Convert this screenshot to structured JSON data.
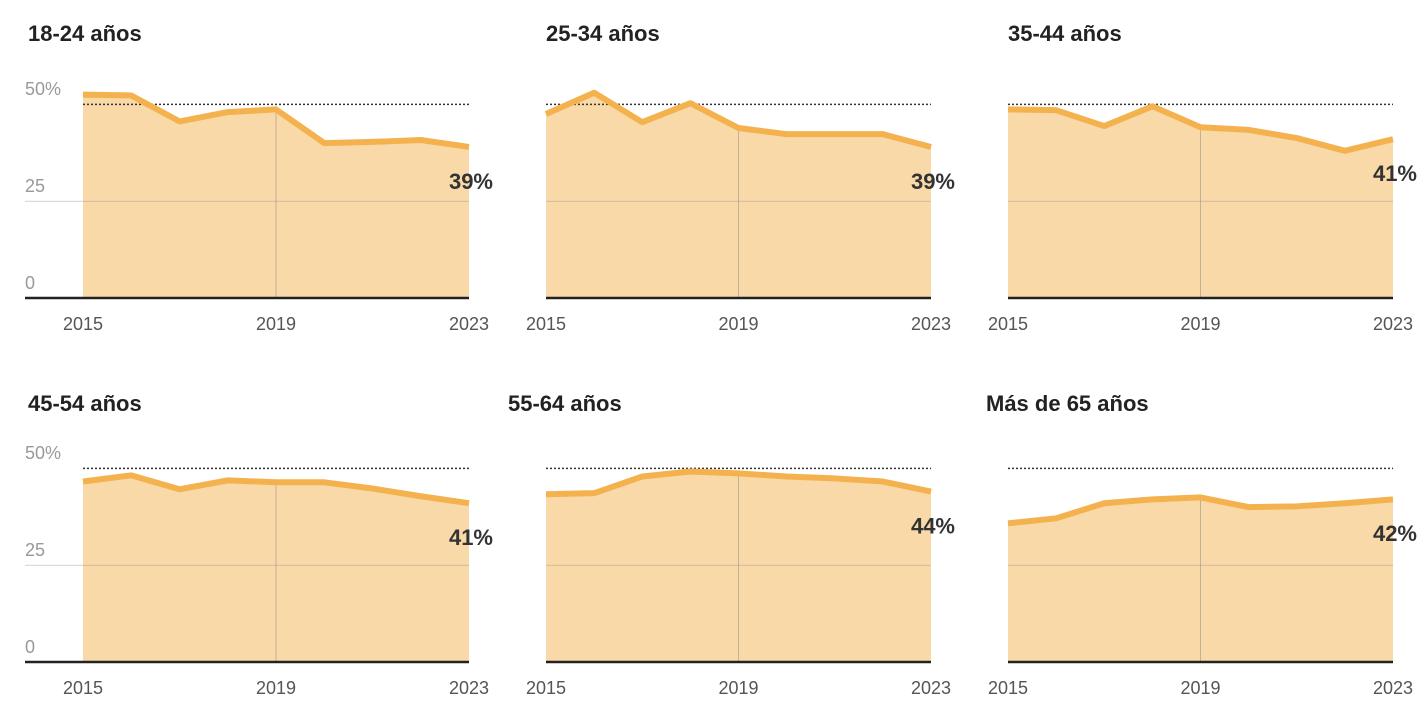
{
  "chart_data": [
    {
      "type": "area",
      "title": "18-24 años",
      "x": [
        2015,
        2016,
        2017,
        2018,
        2019,
        2020,
        2021,
        2022,
        2023
      ],
      "values": [
        52.5,
        52.3,
        45.6,
        48,
        48.7,
        40,
        40.3,
        40.8,
        39
      ],
      "value_labels": [
        null,
        null,
        null,
        null,
        null,
        null,
        null,
        null,
        "39%"
      ],
      "xlim": [
        2015,
        2023
      ],
      "xticks": [
        2015,
        2019,
        2023
      ],
      "ylim": [
        0,
        55
      ],
      "yticks": [
        0,
        25,
        {
          "value": 50,
          "label": "50%"
        }
      ],
      "color": "#f4b24f",
      "fill": "#f9d9a8",
      "grid": true
    },
    {
      "type": "area",
      "title": "25-34 años",
      "x": [
        2015,
        2016,
        2017,
        2018,
        2019,
        2020,
        2021,
        2022,
        2023
      ],
      "values": [
        47.5,
        53,
        45.4,
        50.3,
        43.9,
        42.3,
        42.3,
        42.3,
        39
      ],
      "value_labels": [
        null,
        null,
        null,
        null,
        null,
        null,
        null,
        null,
        "39%"
      ],
      "xlim": [
        2015,
        2023
      ],
      "xticks": [
        2015,
        2019,
        2023
      ],
      "ylim": [
        0,
        55
      ],
      "yticks": [
        0,
        25,
        50
      ],
      "color": "#f4b24f",
      "fill": "#f9d9a8",
      "grid": true
    },
    {
      "type": "area",
      "title": "35-44 años",
      "x": [
        2015,
        2016,
        2017,
        2018,
        2019,
        2020,
        2021,
        2022,
        2023
      ],
      "values": [
        48.7,
        48.5,
        44.4,
        49.5,
        44.1,
        43.4,
        41.3,
        38,
        41
      ],
      "value_labels": [
        null,
        null,
        null,
        null,
        null,
        null,
        null,
        null,
        "41%"
      ],
      "xlim": [
        2015,
        2023
      ],
      "xticks": [
        2015,
        2019,
        2023
      ],
      "ylim": [
        0,
        55
      ],
      "yticks": [
        0,
        25,
        50
      ],
      "color": "#f4b24f",
      "fill": "#f9d9a8",
      "grid": true
    },
    {
      "type": "area",
      "title": "45-54 años",
      "x": [
        2015,
        2016,
        2017,
        2018,
        2019,
        2020,
        2021,
        2022,
        2023
      ],
      "values": [
        46.6,
        48.2,
        44.6,
        46.9,
        46.4,
        46.4,
        44.8,
        42.8,
        41
      ],
      "value_labels": [
        null,
        null,
        null,
        null,
        null,
        null,
        null,
        null,
        "41%"
      ],
      "xlim": [
        2015,
        2023
      ],
      "xticks": [
        2015,
        2019,
        2023
      ],
      "ylim": [
        0,
        55
      ],
      "yticks": [
        0,
        25,
        {
          "value": 50,
          "label": "50%"
        }
      ],
      "color": "#f4b24f",
      "fill": "#f9d9a8",
      "grid": true
    },
    {
      "type": "area",
      "title": "55-64 años",
      "x": [
        2015,
        2016,
        2017,
        2018,
        2019,
        2020,
        2021,
        2022,
        2023
      ],
      "values": [
        43.3,
        43.6,
        47.9,
        49.2,
        48.7,
        47.9,
        47.4,
        46.6,
        44
      ],
      "value_labels": [
        null,
        null,
        null,
        null,
        null,
        null,
        null,
        null,
        "44%"
      ],
      "xlim": [
        2015,
        2023
      ],
      "xticks": [
        2015,
        2019,
        2023
      ],
      "ylim": [
        0,
        55
      ],
      "yticks": [
        0,
        25,
        50
      ],
      "color": "#f4b24f",
      "fill": "#f9d9a8",
      "grid": true
    },
    {
      "type": "area",
      "title": "Más de 65 años",
      "x": [
        2015,
        2016,
        2017,
        2018,
        2019,
        2020,
        2021,
        2022,
        2023
      ],
      "values": [
        35.8,
        37.1,
        41,
        42,
        42.5,
        40,
        40.2,
        41,
        42
      ],
      "value_labels": [
        null,
        null,
        null,
        null,
        null,
        null,
        null,
        null,
        "42%"
      ],
      "xlim": [
        2015,
        2023
      ],
      "xticks": [
        2015,
        2019,
        2023
      ],
      "ylim": [
        0,
        55
      ],
      "yticks": [
        0,
        25,
        50
      ],
      "color": "#f4b24f",
      "fill": "#f9d9a8",
      "grid": true
    }
  ]
}
